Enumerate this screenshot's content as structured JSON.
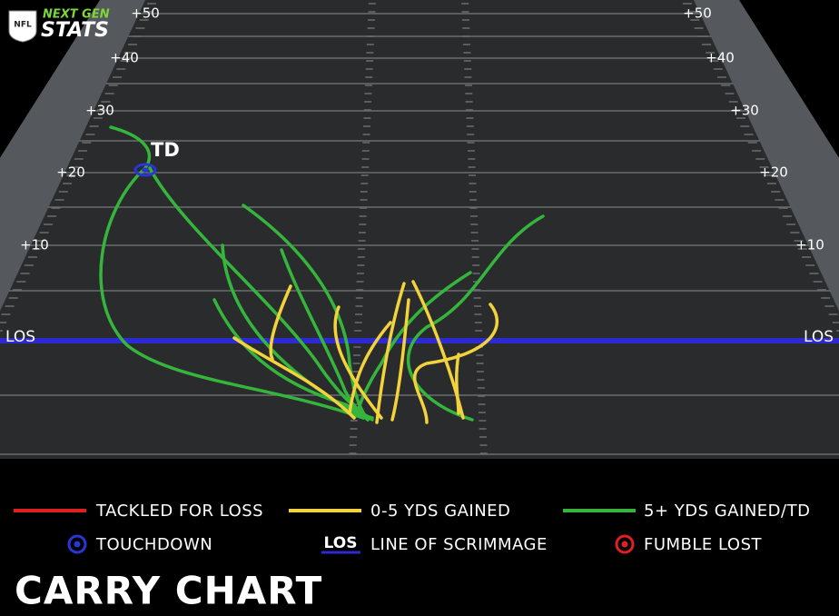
{
  "logo": {
    "badge": "NFL",
    "line1": "NEXT GEN",
    "line2": "STATS"
  },
  "field": {
    "yard_labels_left": [
      "+50",
      "+40",
      "+30",
      "+20",
      "+10"
    ],
    "yard_labels_right": [
      "+50",
      "+40",
      "+30",
      "+20",
      "+10"
    ],
    "los_left": "LOS",
    "los_right": "LOS",
    "td_label": "TD"
  },
  "legend": {
    "items": [
      {
        "label": "TACKLED FOR LOSS"
      },
      {
        "label": "0-5 YDS GAINED"
      },
      {
        "label": "5+ YDS GAINED/TD"
      },
      {
        "label": "TOUCHDOWN"
      },
      {
        "icon": "LOS",
        "label": "LINE OF SCRIMMAGE"
      },
      {
        "label": "FUMBLE LOST"
      }
    ]
  },
  "title": "CARRY CHART"
}
